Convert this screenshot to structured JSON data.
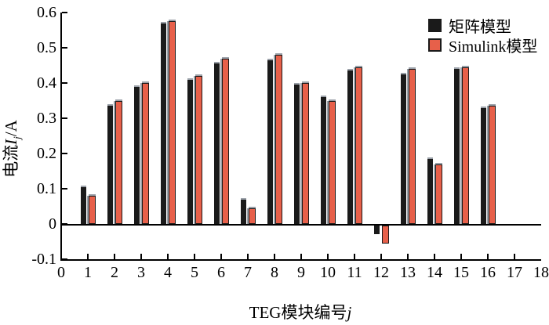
{
  "chart_data": {
    "type": "bar",
    "title": "",
    "xlabel_main": "TEG模块编号",
    "xlabel_italic_suffix": "j",
    "ylabel_prefix": "电流",
    "ylabel_symbol_italic": "I",
    "ylabel_subscript_italic": "j",
    "ylabel_suffix": "/A",
    "xlim": [
      0,
      18
    ],
    "ylim": [
      -0.1,
      0.6
    ],
    "grid": false,
    "legend_position": "top-right",
    "x_ticks": [
      0,
      1,
      2,
      3,
      4,
      5,
      6,
      7,
      8,
      9,
      10,
      11,
      12,
      13,
      14,
      15,
      16,
      17,
      18
    ],
    "x_tick_labels": [
      "0",
      "1",
      "2",
      "3",
      "4",
      "5",
      "6",
      "7",
      "8",
      "9",
      "10",
      "11",
      "12",
      "13",
      "14",
      "15",
      "16",
      "17",
      "18"
    ],
    "y_ticks": [
      0.6,
      0.5,
      0.4,
      0.3,
      0.2,
      0.1,
      0,
      -0.1
    ],
    "y_tick_labels": [
      "0.6",
      "0.5",
      "0.4",
      "0.3",
      "0.2",
      "0.1",
      "0",
      "-0.1"
    ],
    "categories": [
      1,
      2,
      3,
      4,
      5,
      6,
      7,
      8,
      9,
      10,
      11,
      12,
      13,
      14,
      15,
      16
    ],
    "series": [
      {
        "name": "矩阵模型",
        "color": "#1a1a1a",
        "values": [
          0.105,
          0.335,
          0.39,
          0.57,
          0.41,
          0.455,
          0.07,
          0.465,
          0.395,
          0.36,
          0.435,
          -0.025,
          0.425,
          0.185,
          0.44,
          0.33
        ]
      },
      {
        "name": "Simulink模型",
        "color": "#e7604a",
        "values": [
          0.08,
          0.35,
          0.4,
          0.575,
          0.42,
          0.47,
          0.045,
          0.48,
          0.4,
          0.35,
          0.445,
          -0.05,
          0.44,
          0.17,
          0.445,
          0.335
        ]
      }
    ]
  },
  "colors": {
    "background": "#ffffff",
    "axis": "#000000",
    "black_series": "#1a1a1a",
    "red_series": "#e7604a",
    "red_series_border": "#1a1a1a",
    "bar_shadow_gray": "#9aa0a8"
  }
}
